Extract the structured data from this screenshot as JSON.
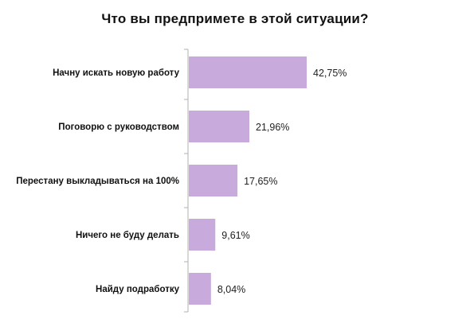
{
  "chart_data": {
    "type": "bar",
    "orientation": "horizontal",
    "title": "Что вы предпримете в этой ситуации?",
    "categories": [
      "Начну искать новую работу",
      "Поговорю с руководством",
      "Перестану выкладываться на 100%",
      "Ничего не буду делать",
      "Найду подработку"
    ],
    "values": [
      42.75,
      21.96,
      17.65,
      9.61,
      8.04
    ],
    "value_labels": [
      "42,75%",
      "21,96%",
      "17,65%",
      "9,61%",
      "8,04%"
    ],
    "xlim": [
      0,
      45
    ],
    "bar_color": "#c8aadc",
    "axis_color": "#b0b0b0",
    "grid": false,
    "legend": "none"
  }
}
